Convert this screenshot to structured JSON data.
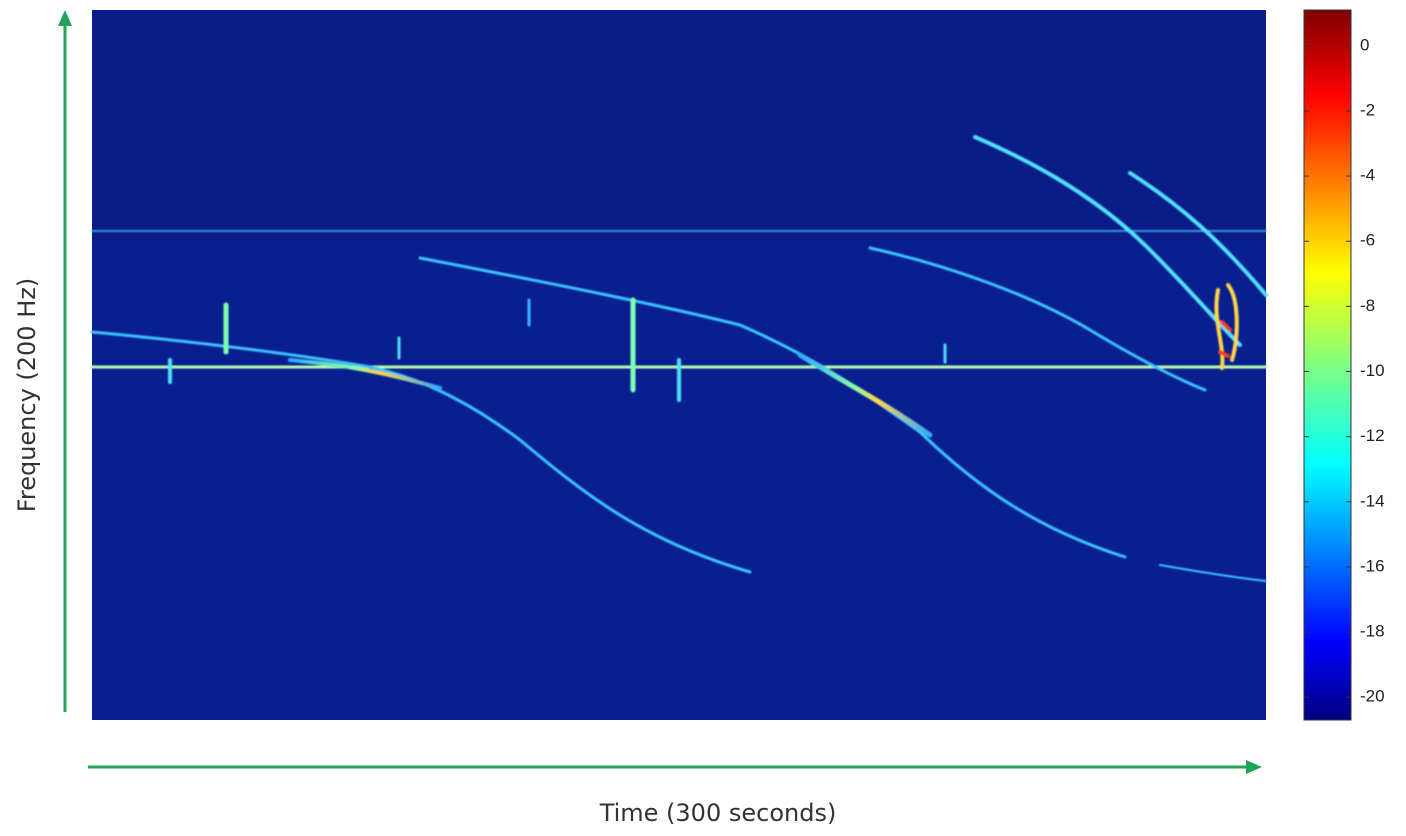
{
  "chart_data": {
    "type": "spectrogram",
    "xlabel": "Time (300 seconds)",
    "ylabel": "Frequency (200 Hz)",
    "colormap": "jet",
    "clim": [
      -20.7,
      1.1
    ],
    "cticks": [
      0,
      -2,
      -4,
      -6,
      -8,
      -10,
      -12,
      -14,
      -16,
      -18,
      -20
    ]
  }
}
